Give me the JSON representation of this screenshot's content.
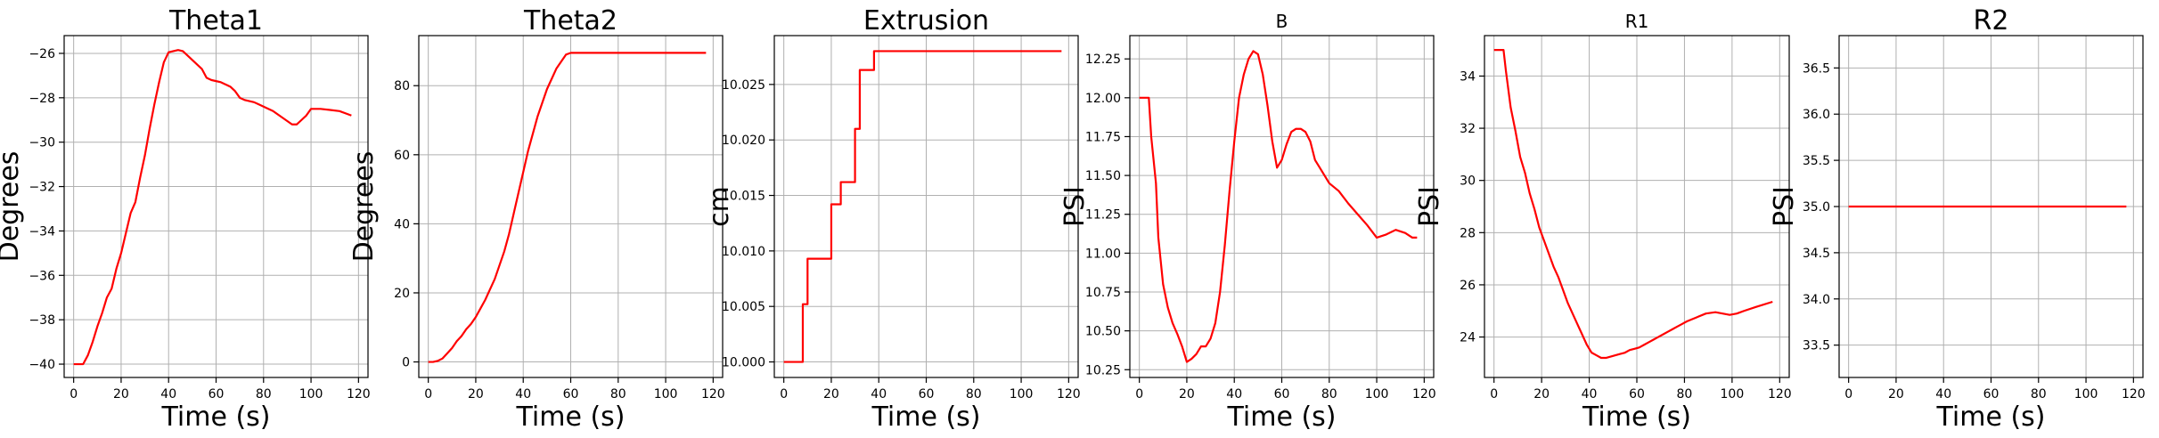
{
  "chart_data": [
    {
      "type": "line",
      "title": "Theta1",
      "xlabel": "Time (s)",
      "ylabel": "Degrees",
      "xlim": [
        -4,
        124
      ],
      "ylim": [
        -40.6,
        -25.2
      ],
      "xticks": [
        0,
        20,
        40,
        60,
        80,
        100,
        120
      ],
      "yticks": [
        -40,
        -38,
        -36,
        -34,
        -32,
        -30,
        -28,
        -26
      ],
      "ytick_labels": [
        "−40",
        "−38",
        "−36",
        "−34",
        "−32",
        "−30",
        "−28",
        "−26"
      ],
      "grid": true,
      "series": [
        {
          "color": "#ff0000",
          "x": [
            0,
            4,
            6,
            8,
            10,
            12,
            14,
            16,
            18,
            20,
            22,
            24,
            26,
            28,
            30,
            32,
            34,
            36,
            38,
            40,
            42,
            44,
            46,
            48,
            50,
            52,
            54,
            56,
            58,
            60,
            62,
            64,
            66,
            68,
            70,
            72,
            74,
            76,
            78,
            80,
            84,
            88,
            92,
            94,
            96,
            98,
            100,
            102,
            104,
            108,
            112,
            117
          ],
          "y": [
            -40.0,
            -40.0,
            -39.6,
            -39.0,
            -38.3,
            -37.7,
            -37.0,
            -36.6,
            -35.7,
            -35.0,
            -34.1,
            -33.2,
            -32.7,
            -31.6,
            -30.6,
            -29.4,
            -28.3,
            -27.3,
            -26.4,
            -25.95,
            -25.9,
            -25.85,
            -25.9,
            -26.1,
            -26.3,
            -26.5,
            -26.7,
            -27.1,
            -27.2,
            -27.25,
            -27.3,
            -27.4,
            -27.5,
            -27.7,
            -28.0,
            -28.1,
            -28.15,
            -28.2,
            -28.3,
            -28.4,
            -28.6,
            -28.9,
            -29.2,
            -29.2,
            -29.0,
            -28.8,
            -28.5,
            -28.5,
            -28.5,
            -28.55,
            -28.6,
            -28.8
          ]
        }
      ]
    },
    {
      "type": "line",
      "title": "Theta2",
      "xlabel": "Time (s)",
      "ylabel": "Degrees",
      "xlim": [
        -4,
        124
      ],
      "ylim": [
        -4.5,
        94.5
      ],
      "xticks": [
        0,
        20,
        40,
        60,
        80,
        100,
        120
      ],
      "yticks": [
        0,
        20,
        40,
        60,
        80
      ],
      "ytick_labels": [
        "0",
        "20",
        "40",
        "60",
        "80"
      ],
      "grid": true,
      "series": [
        {
          "color": "#ff0000",
          "x": [
            0,
            2,
            4,
            6,
            8,
            10,
            12,
            14,
            16,
            18,
            20,
            22,
            24,
            26,
            28,
            30,
            32,
            34,
            36,
            38,
            40,
            42,
            44,
            46,
            48,
            50,
            52,
            54,
            56,
            58,
            60,
            70,
            80,
            90,
            100,
            110,
            117
          ],
          "y": [
            0,
            0,
            0.3,
            1,
            2.5,
            4,
            6,
            7.5,
            9.5,
            11,
            13,
            15.5,
            18,
            21,
            24,
            28,
            32,
            37,
            43,
            49,
            55,
            61,
            66,
            71,
            75,
            79,
            82,
            85,
            87,
            89,
            89.5,
            89.5,
            89.5,
            89.5,
            89.5,
            89.5,
            89.5
          ]
        }
      ]
    },
    {
      "type": "line",
      "title": "Extrusion",
      "xlabel": "Time (s)",
      "ylabel": "cm",
      "xlim": [
        -4,
        124
      ],
      "ylim": [
        9.9986,
        10.0294
      ],
      "xticks": [
        0,
        20,
        40,
        60,
        80,
        100,
        120
      ],
      "yticks": [
        10.0,
        10.005,
        10.01,
        10.015,
        10.02,
        10.025
      ],
      "ytick_labels": [
        "10.000",
        "10.005",
        "10.010",
        "10.015",
        "10.020",
        "10.025"
      ],
      "grid": true,
      "series": [
        {
          "color": "#ff0000",
          "x": [
            0,
            8,
            8,
            10,
            10,
            18,
            18,
            20,
            20,
            24,
            24,
            28,
            28,
            30,
            30,
            32,
            32,
            36,
            36,
            38,
            38,
            117
          ],
          "y": [
            10.0,
            10.0,
            10.0052,
            10.0052,
            10.0093,
            10.0093,
            10.0093,
            10.0093,
            10.0142,
            10.0142,
            10.0162,
            10.0162,
            10.0162,
            10.0162,
            10.021,
            10.021,
            10.0263,
            10.0263,
            10.0263,
            10.0263,
            10.028,
            10.028
          ]
        }
      ]
    },
    {
      "type": "line",
      "title": "B",
      "xlabel": "Time (s)",
      "ylabel": "PSI",
      "xlim": [
        -4,
        124
      ],
      "ylim": [
        10.2,
        12.4
      ],
      "xticks": [
        0,
        20,
        40,
        60,
        80,
        100,
        120
      ],
      "yticks": [
        10.25,
        10.5,
        10.75,
        11.0,
        11.25,
        11.5,
        11.75,
        12.0,
        12.25
      ],
      "ytick_labels": [
        "10.25",
        "10.50",
        "10.75",
        "11.00",
        "11.25",
        "11.50",
        "11.75",
        "12.00",
        "12.25"
      ],
      "grid": true,
      "series": [
        {
          "color": "#ff0000",
          "x": [
            0,
            4,
            5,
            7,
            8,
            10,
            12,
            14,
            16,
            18,
            20,
            22,
            24,
            26,
            28,
            30,
            32,
            34,
            36,
            38,
            40,
            42,
            44,
            46,
            48,
            50,
            52,
            54,
            56,
            58,
            60,
            62,
            64,
            66,
            68,
            70,
            72,
            74,
            76,
            78,
            80,
            84,
            88,
            92,
            96,
            100,
            104,
            108,
            112,
            115,
            117
          ],
          "y": [
            12.0,
            12.0,
            11.75,
            11.45,
            11.1,
            10.8,
            10.65,
            10.55,
            10.48,
            10.4,
            10.3,
            10.32,
            10.35,
            10.4,
            10.4,
            10.45,
            10.55,
            10.75,
            11.05,
            11.4,
            11.72,
            12.0,
            12.15,
            12.25,
            12.3,
            12.28,
            12.15,
            11.95,
            11.72,
            11.55,
            11.6,
            11.7,
            11.78,
            11.8,
            11.8,
            11.78,
            11.72,
            11.6,
            11.55,
            11.5,
            11.45,
            11.4,
            11.32,
            11.25,
            11.18,
            11.1,
            11.12,
            11.15,
            11.13,
            11.1,
            11.1
          ]
        }
      ]
    },
    {
      "type": "line",
      "title": "R1",
      "xlabel": "Time (s)",
      "ylabel": "PSI",
      "xlim": [
        -4,
        124
      ],
      "ylim": [
        22.45,
        35.55
      ],
      "xticks": [
        0,
        20,
        40,
        60,
        80,
        100,
        120
      ],
      "yticks": [
        24,
        26,
        28,
        30,
        32,
        34
      ],
      "ytick_labels": [
        "24",
        "26",
        "28",
        "30",
        "32",
        "34"
      ],
      "grid": true,
      "series": [
        {
          "color": "#ff0000",
          "x": [
            0,
            4,
            5,
            7,
            9,
            11,
            13,
            15,
            17,
            19,
            21,
            23,
            25,
            27,
            29,
            31,
            33,
            35,
            37,
            39,
            41,
            43,
            45,
            47,
            49,
            51,
            53,
            55,
            57,
            59,
            61,
            63,
            65,
            67,
            69,
            71,
            73,
            75,
            77,
            79,
            81,
            85,
            89,
            93,
            96,
            99,
            102,
            105,
            110,
            117
          ],
          "y": [
            35.0,
            35.0,
            34.2,
            32.8,
            31.9,
            30.9,
            30.3,
            29.5,
            28.9,
            28.2,
            27.7,
            27.2,
            26.7,
            26.3,
            25.8,
            25.3,
            24.9,
            24.5,
            24.1,
            23.7,
            23.4,
            23.3,
            23.2,
            23.2,
            23.25,
            23.3,
            23.35,
            23.4,
            23.5,
            23.55,
            23.6,
            23.7,
            23.8,
            23.9,
            24.0,
            24.1,
            24.2,
            24.3,
            24.4,
            24.5,
            24.6,
            24.75,
            24.9,
            24.95,
            24.9,
            24.85,
            24.9,
            25.0,
            25.15,
            25.35
          ]
        }
      ]
    },
    {
      "type": "line",
      "title": "R2",
      "xlabel": "Time (s)",
      "ylabel": "PSI",
      "xlim": [
        -4,
        124
      ],
      "ylim": [
        33.15,
        36.85
      ],
      "xticks": [
        0,
        20,
        40,
        60,
        80,
        100,
        120
      ],
      "yticks": [
        33.5,
        34.0,
        34.5,
        35.0,
        35.5,
        36.0,
        36.5
      ],
      "ytick_labels": [
        "33.5",
        "34.0",
        "34.5",
        "35.0",
        "35.5",
        "36.0",
        "36.5"
      ],
      "grid": true,
      "series": [
        {
          "color": "#ff0000",
          "x": [
            0,
            117
          ],
          "y": [
            35.0,
            35.0
          ]
        }
      ]
    }
  ]
}
